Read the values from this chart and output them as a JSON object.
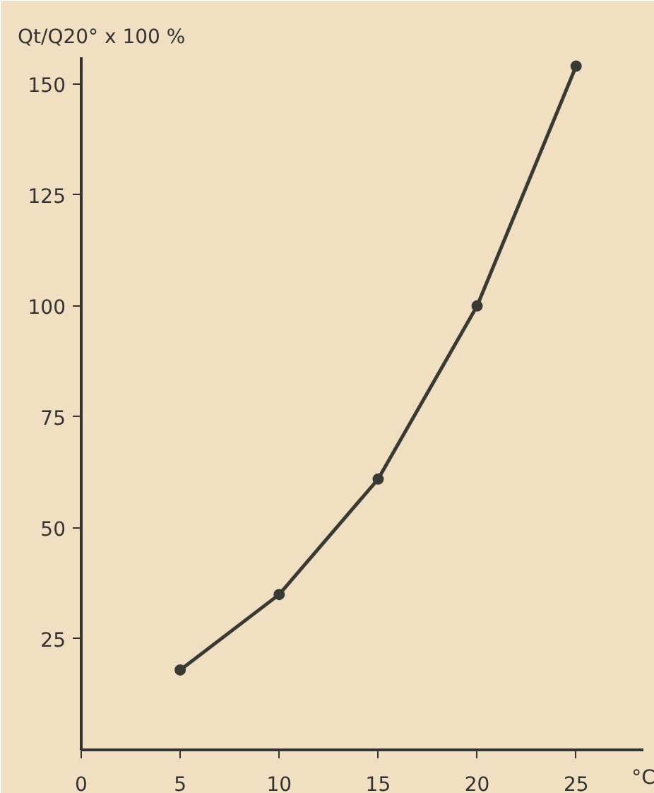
{
  "chart_data": {
    "type": "line",
    "ylabel": "Qt/Q20° x 100 %",
    "xlabel": "°C",
    "x": [
      5,
      10,
      15,
      20,
      25
    ],
    "series": [
      {
        "color": "#3a3a35",
        "values": [
          18,
          35,
          61,
          100,
          154
        ]
      }
    ],
    "marker": "circle",
    "line_style": "solid",
    "grid": false,
    "xlim": [
      0,
      28.4
    ],
    "ylim": [
      0,
      156
    ],
    "xticks": [
      0,
      5,
      10,
      15,
      20,
      25
    ],
    "yticks": [
      25,
      50,
      75,
      100,
      125,
      150
    ]
  }
}
